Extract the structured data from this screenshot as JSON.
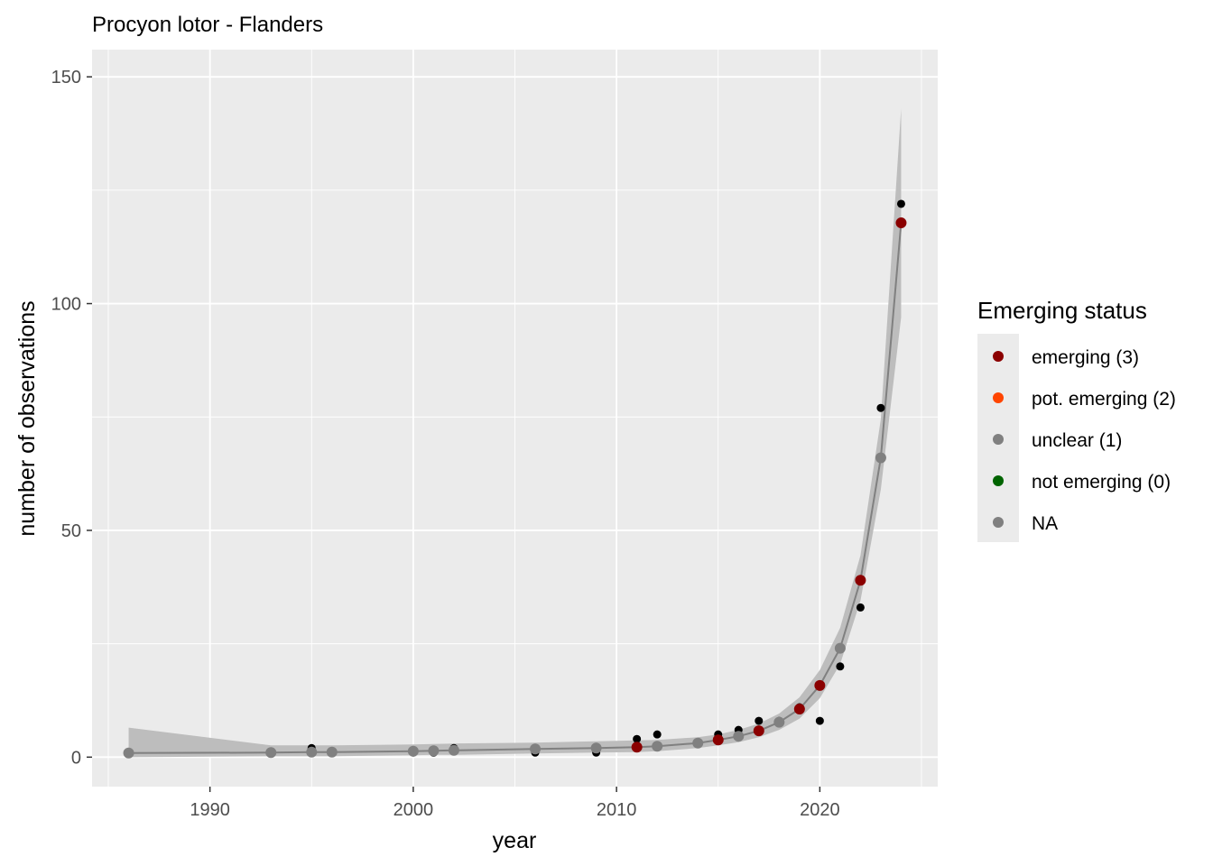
{
  "chart_data": {
    "type": "scatter",
    "title": "Procyon lotor - Flanders",
    "xlabel": "year",
    "ylabel": "number of observations",
    "xlim": [
      1984.2,
      2025.8
    ],
    "ylim": [
      -6.5,
      156
    ],
    "x_ticks": [
      1990,
      2000,
      2010,
      2020
    ],
    "x_tick_labels": [
      "1990",
      "2000",
      "2010",
      "2020"
    ],
    "y_ticks": [
      0,
      50,
      100,
      150
    ],
    "y_tick_labels": [
      "0",
      "50",
      "100",
      "150"
    ],
    "grid": true,
    "observed": {
      "color": "#000000",
      "points": [
        {
          "x": 1986,
          "y": 1
        },
        {
          "x": 1993,
          "y": 1
        },
        {
          "x": 1995,
          "y": 2
        },
        {
          "x": 1996,
          "y": 1
        },
        {
          "x": 2000,
          "y": 1
        },
        {
          "x": 2001,
          "y": 1
        },
        {
          "x": 2002,
          "y": 2
        },
        {
          "x": 2006,
          "y": 1
        },
        {
          "x": 2009,
          "y": 1
        },
        {
          "x": 2011,
          "y": 4
        },
        {
          "x": 2012,
          "y": 5
        },
        {
          "x": 2014,
          "y": 3
        },
        {
          "x": 2015,
          "y": 5
        },
        {
          "x": 2016,
          "y": 6
        },
        {
          "x": 2017,
          "y": 8
        },
        {
          "x": 2018,
          "y": 8
        },
        {
          "x": 2019,
          "y": 11
        },
        {
          "x": 2020,
          "y": 8
        },
        {
          "x": 2021,
          "y": 20
        },
        {
          "x": 2022,
          "y": 33
        },
        {
          "x": 2023,
          "y": 77
        },
        {
          "x": 2024,
          "y": 122
        }
      ]
    },
    "fitted": {
      "line_color": "#808080",
      "ribbon_color": "#bdbdbd",
      "points": [
        {
          "x": 1986,
          "y": 0.9,
          "lower": 0,
          "upper": 6.5,
          "status": "NA"
        },
        {
          "x": 1993,
          "y": 1.0,
          "lower": 0.2,
          "upper": 2.6,
          "status": "unclear (1)"
        },
        {
          "x": 1995,
          "y": 1.1,
          "lower": 0.2,
          "upper": 2.6,
          "status": "unclear (1)"
        },
        {
          "x": 1996,
          "y": 1.1,
          "lower": 0.2,
          "upper": 2.6,
          "status": "unclear (1)"
        },
        {
          "x": 2000,
          "y": 1.3,
          "lower": 0.4,
          "upper": 2.8,
          "status": "unclear (1)"
        },
        {
          "x": 2001,
          "y": 1.4,
          "lower": 0.5,
          "upper": 2.9,
          "status": "unclear (1)"
        },
        {
          "x": 2002,
          "y": 1.5,
          "lower": 0.5,
          "upper": 3.0,
          "status": "unclear (1)"
        },
        {
          "x": 2006,
          "y": 1.8,
          "lower": 0.8,
          "upper": 3.2,
          "status": "unclear (1)"
        },
        {
          "x": 2009,
          "y": 2.0,
          "lower": 1.0,
          "upper": 3.5,
          "status": "unclear (1)"
        },
        {
          "x": 2011,
          "y": 2.2,
          "lower": 1.1,
          "upper": 3.7,
          "status": "emerging (3)"
        },
        {
          "x": 2012,
          "y": 2.4,
          "lower": 1.3,
          "upper": 3.8,
          "status": "unclear (1)"
        },
        {
          "x": 2014,
          "y": 3.1,
          "lower": 2.0,
          "upper": 4.4,
          "status": "unclear (1)"
        },
        {
          "x": 2015,
          "y": 3.8,
          "lower": 2.6,
          "upper": 5.0,
          "status": "emerging (3)"
        },
        {
          "x": 2016,
          "y": 4.6,
          "lower": 3.3,
          "upper": 6.0,
          "status": "unclear (1)"
        },
        {
          "x": 2017,
          "y": 5.8,
          "lower": 4.4,
          "upper": 7.4,
          "status": "emerging (3)"
        },
        {
          "x": 2018,
          "y": 7.7,
          "lower": 6.0,
          "upper": 9.6,
          "status": "unclear (1)"
        },
        {
          "x": 2019,
          "y": 10.6,
          "lower": 8.5,
          "upper": 13.2,
          "status": "emerging (3)"
        },
        {
          "x": 2020,
          "y": 15.8,
          "lower": 13.0,
          "upper": 19.2,
          "status": "emerging (3)"
        },
        {
          "x": 2021,
          "y": 24.0,
          "lower": 20.5,
          "upper": 28.5,
          "status": "unclear (1)"
        },
        {
          "x": 2022,
          "y": 39.0,
          "lower": 34.5,
          "upper": 44.5,
          "status": "emerging (3)"
        },
        {
          "x": 2023,
          "y": 66.0,
          "lower": 59.0,
          "upper": 74.5,
          "status": "unclear (1)"
        },
        {
          "x": 2024,
          "y": 117.8,
          "lower": 97.0,
          "upper": 143.0,
          "status": "emerging (3)"
        }
      ]
    },
    "legend": {
      "title": "Emerging status",
      "position": "right",
      "entries": [
        {
          "label": "emerging (3)",
          "color": "#8b0000"
        },
        {
          "label": "pot. emerging (2)",
          "color": "#ff4500"
        },
        {
          "label": "unclear (1)",
          "color": "#808080"
        },
        {
          "label": "not emerging (0)",
          "color": "#006400"
        },
        {
          "label": "NA",
          "color": "#808080"
        }
      ]
    },
    "panel_background": "#ebebeb",
    "grid_color": "#ffffff"
  }
}
